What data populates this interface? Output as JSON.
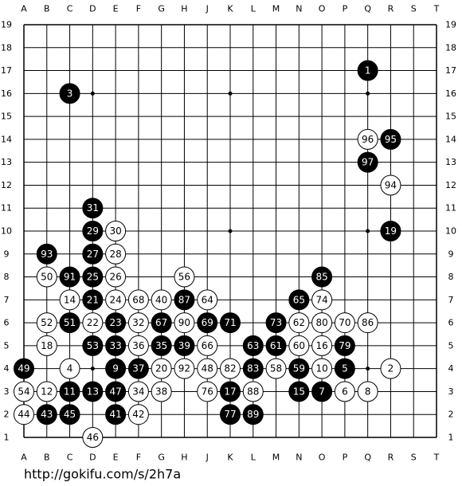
{
  "board": {
    "columns": [
      "A",
      "B",
      "C",
      "D",
      "E",
      "F",
      "G",
      "H",
      "J",
      "K",
      "L",
      "M",
      "N",
      "O",
      "P",
      "Q",
      "R",
      "S",
      "T"
    ],
    "rows": [
      19,
      18,
      17,
      16,
      15,
      14,
      13,
      12,
      11,
      10,
      9,
      8,
      7,
      6,
      5,
      4,
      3,
      2,
      1
    ],
    "stones": [
      {
        "n": 1,
        "color": "black",
        "col": "Q",
        "row": 17
      },
      {
        "n": 3,
        "color": "black",
        "col": "C",
        "row": 16
      },
      {
        "n": 96,
        "color": "white",
        "col": "Q",
        "row": 14
      },
      {
        "n": 95,
        "color": "black",
        "col": "R",
        "row": 14
      },
      {
        "n": 97,
        "color": "black",
        "col": "Q",
        "row": 13
      },
      {
        "n": 94,
        "color": "white",
        "col": "R",
        "row": 12
      },
      {
        "n": 31,
        "color": "black",
        "col": "D",
        "row": 11
      },
      {
        "n": 29,
        "color": "black",
        "col": "D",
        "row": 10
      },
      {
        "n": 30,
        "color": "white",
        "col": "E",
        "row": 10
      },
      {
        "n": 19,
        "color": "black",
        "col": "R",
        "row": 10
      },
      {
        "n": 93,
        "color": "black",
        "col": "B",
        "row": 9
      },
      {
        "n": 27,
        "color": "black",
        "col": "D",
        "row": 9
      },
      {
        "n": 28,
        "color": "white",
        "col": "E",
        "row": 9
      },
      {
        "n": 50,
        "color": "white",
        "col": "B",
        "row": 8
      },
      {
        "n": 91,
        "color": "black",
        "col": "C",
        "row": 8
      },
      {
        "n": 25,
        "color": "black",
        "col": "D",
        "row": 8
      },
      {
        "n": 26,
        "color": "white",
        "col": "E",
        "row": 8
      },
      {
        "n": 56,
        "color": "white",
        "col": "H",
        "row": 8
      },
      {
        "n": 85,
        "color": "black",
        "col": "O",
        "row": 8
      },
      {
        "n": 14,
        "color": "white",
        "col": "C",
        "row": 7
      },
      {
        "n": 21,
        "color": "black",
        "col": "D",
        "row": 7
      },
      {
        "n": 24,
        "color": "white",
        "col": "E",
        "row": 7
      },
      {
        "n": 68,
        "color": "white",
        "col": "F",
        "row": 7
      },
      {
        "n": 40,
        "color": "white",
        "col": "G",
        "row": 7
      },
      {
        "n": 87,
        "color": "black",
        "col": "H",
        "row": 7
      },
      {
        "n": 64,
        "color": "white",
        "col": "J",
        "row": 7
      },
      {
        "n": 65,
        "color": "black",
        "col": "N",
        "row": 7
      },
      {
        "n": 74,
        "color": "white",
        "col": "O",
        "row": 7
      },
      {
        "n": 52,
        "color": "white",
        "col": "B",
        "row": 6
      },
      {
        "n": 51,
        "color": "black",
        "col": "C",
        "row": 6
      },
      {
        "n": 22,
        "color": "white",
        "col": "D",
        "row": 6
      },
      {
        "n": 23,
        "color": "black",
        "col": "E",
        "row": 6
      },
      {
        "n": 32,
        "color": "white",
        "col": "F",
        "row": 6
      },
      {
        "n": 67,
        "color": "black",
        "col": "G",
        "row": 6
      },
      {
        "n": 90,
        "color": "white",
        "col": "H",
        "row": 6
      },
      {
        "n": 69,
        "color": "black",
        "col": "J",
        "row": 6
      },
      {
        "n": 71,
        "color": "black",
        "col": "K",
        "row": 6
      },
      {
        "n": 73,
        "color": "black",
        "col": "M",
        "row": 6
      },
      {
        "n": 62,
        "color": "white",
        "col": "N",
        "row": 6
      },
      {
        "n": 80,
        "color": "white",
        "col": "O",
        "row": 6
      },
      {
        "n": 70,
        "color": "white",
        "col": "P",
        "row": 6
      },
      {
        "n": 86,
        "color": "white",
        "col": "Q",
        "row": 6
      },
      {
        "n": 18,
        "color": "white",
        "col": "B",
        "row": 5
      },
      {
        "n": 53,
        "color": "black",
        "col": "D",
        "row": 5
      },
      {
        "n": 33,
        "color": "black",
        "col": "E",
        "row": 5
      },
      {
        "n": 36,
        "color": "white",
        "col": "F",
        "row": 5
      },
      {
        "n": 35,
        "color": "black",
        "col": "G",
        "row": 5
      },
      {
        "n": 39,
        "color": "black",
        "col": "H",
        "row": 5
      },
      {
        "n": 66,
        "color": "white",
        "col": "J",
        "row": 5
      },
      {
        "n": 63,
        "color": "black",
        "col": "L",
        "row": 5
      },
      {
        "n": 61,
        "color": "black",
        "col": "M",
        "row": 5
      },
      {
        "n": 60,
        "color": "white",
        "col": "N",
        "row": 5
      },
      {
        "n": 16,
        "color": "white",
        "col": "O",
        "row": 5
      },
      {
        "n": 79,
        "color": "black",
        "col": "P",
        "row": 5
      },
      {
        "n": 49,
        "color": "black",
        "col": "A",
        "row": 4
      },
      {
        "n": 4,
        "color": "white",
        "col": "C",
        "row": 4
      },
      {
        "n": 9,
        "color": "black",
        "col": "E",
        "row": 4
      },
      {
        "n": 37,
        "color": "black",
        "col": "F",
        "row": 4
      },
      {
        "n": 20,
        "color": "white",
        "col": "G",
        "row": 4
      },
      {
        "n": 92,
        "color": "white",
        "col": "H",
        "row": 4
      },
      {
        "n": 48,
        "color": "white",
        "col": "J",
        "row": 4
      },
      {
        "n": 82,
        "color": "white",
        "col": "K",
        "row": 4
      },
      {
        "n": 83,
        "color": "black",
        "col": "L",
        "row": 4
      },
      {
        "n": 58,
        "color": "white",
        "col": "M",
        "row": 4
      },
      {
        "n": 59,
        "color": "black",
        "col": "N",
        "row": 4
      },
      {
        "n": 10,
        "color": "white",
        "col": "O",
        "row": 4
      },
      {
        "n": 5,
        "color": "black",
        "col": "P",
        "row": 4
      },
      {
        "n": 2,
        "color": "white",
        "col": "R",
        "row": 4
      },
      {
        "n": 54,
        "color": "white",
        "col": "A",
        "row": 3
      },
      {
        "n": 12,
        "color": "white",
        "col": "B",
        "row": 3
      },
      {
        "n": 11,
        "color": "black",
        "col": "C",
        "row": 3
      },
      {
        "n": 13,
        "color": "black",
        "col": "D",
        "row": 3
      },
      {
        "n": 47,
        "color": "black",
        "col": "E",
        "row": 3
      },
      {
        "n": 34,
        "color": "white",
        "col": "F",
        "row": 3
      },
      {
        "n": 38,
        "color": "white",
        "col": "G",
        "row": 3
      },
      {
        "n": 76,
        "color": "white",
        "col": "J",
        "row": 3
      },
      {
        "n": 17,
        "color": "black",
        "col": "K",
        "row": 3
      },
      {
        "n": 88,
        "color": "white",
        "col": "L",
        "row": 3
      },
      {
        "n": 15,
        "color": "black",
        "col": "N",
        "row": 3
      },
      {
        "n": 7,
        "color": "black",
        "col": "O",
        "row": 3
      },
      {
        "n": 6,
        "color": "white",
        "col": "P",
        "row": 3
      },
      {
        "n": 8,
        "color": "white",
        "col": "Q",
        "row": 3
      },
      {
        "n": 44,
        "color": "white",
        "col": "A",
        "row": 2
      },
      {
        "n": 43,
        "color": "black",
        "col": "B",
        "row": 2
      },
      {
        "n": 45,
        "color": "black",
        "col": "C",
        "row": 2
      },
      {
        "n": 41,
        "color": "black",
        "col": "E",
        "row": 2
      },
      {
        "n": 42,
        "color": "white",
        "col": "F",
        "row": 2
      },
      {
        "n": 77,
        "color": "black",
        "col": "K",
        "row": 2
      },
      {
        "n": 89,
        "color": "black",
        "col": "L",
        "row": 2
      },
      {
        "n": 46,
        "color": "white",
        "col": "D",
        "row": 1
      }
    ]
  },
  "footer": {
    "url": "http://gokifu.com/s/2h7a"
  }
}
